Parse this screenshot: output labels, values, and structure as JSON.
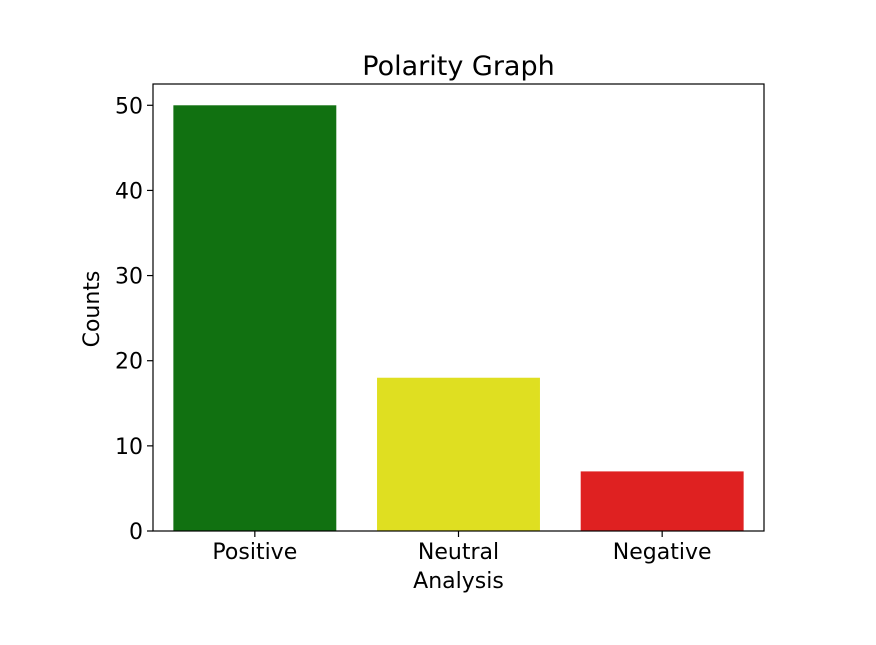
{
  "chart_data": {
    "type": "bar",
    "title": "Polarity Graph",
    "xlabel": "Analysis",
    "ylabel": "Counts",
    "categories": [
      "Positive",
      "Neutral",
      "Negative"
    ],
    "values": [
      50,
      18,
      7
    ],
    "colors": [
      "#117111",
      "#dfdf21",
      "#df2121"
    ],
    "ylim": [
      0,
      52.5
    ],
    "yticks": [
      0,
      10,
      20,
      30,
      40,
      50
    ],
    "grid": false,
    "legend": "none"
  }
}
